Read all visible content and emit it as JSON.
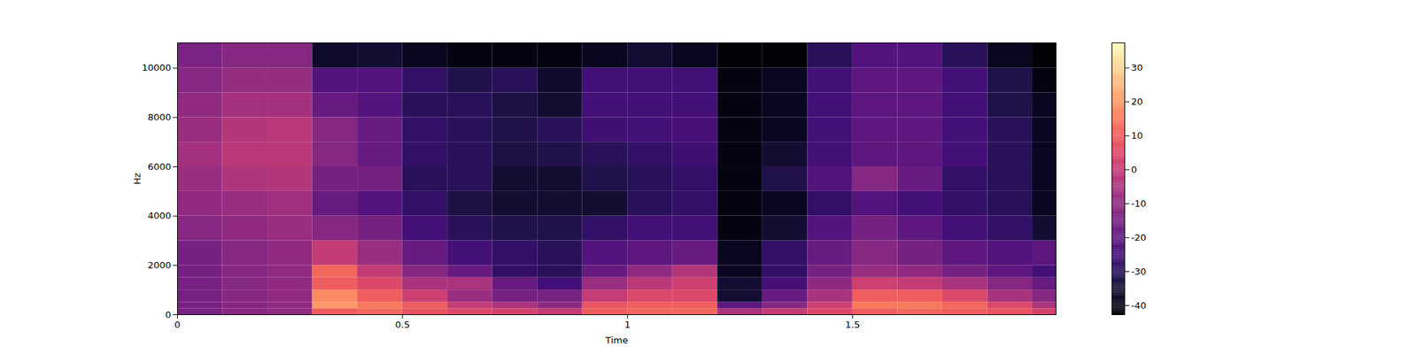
{
  "chart_data": {
    "type": "heatmap",
    "x_label": "Time",
    "y_label": "Hz",
    "xlim": [
      0,
      1.952
    ],
    "xticks": [
      0,
      0.5,
      1,
      1.5
    ],
    "ylim": [
      0,
      11025
    ],
    "yticks": [
      0,
      2000,
      4000,
      6000,
      8000,
      10000
    ],
    "time_edges": [
      0,
      0.1,
      0.2,
      0.3,
      0.4,
      0.5,
      0.6,
      0.7,
      0.8,
      0.9,
      1.0,
      1.1,
      1.2,
      1.3,
      1.4,
      1.5,
      1.6,
      1.7,
      1.8,
      1.9,
      1.952
    ],
    "freq_edges": [
      0,
      250,
      500,
      1000,
      1500,
      2000,
      3000,
      4000,
      5000,
      6000,
      7000,
      8000,
      9000,
      10000,
      11025
    ],
    "cells": [
      [
        -15,
        -12,
        -10,
        10,
        12,
        8,
        5,
        3,
        0,
        10,
        12,
        12,
        -5,
        0,
        5,
        10,
        12,
        10,
        8,
        3
      ],
      [
        -15,
        -12,
        -10,
        20,
        15,
        10,
        0,
        -5,
        -10,
        8,
        10,
        10,
        -20,
        -12,
        2,
        15,
        15,
        12,
        5,
        -5
      ],
      [
        -15,
        -12,
        -10,
        18,
        10,
        2,
        -8,
        -15,
        -15,
        0,
        5,
        5,
        -35,
        -18,
        -5,
        10,
        10,
        5,
        -5,
        -12
      ],
      [
        -15,
        -12,
        -10,
        10,
        5,
        -5,
        -5,
        -18,
        -25,
        -8,
        -2,
        2,
        -35,
        -25,
        -10,
        2,
        0,
        -5,
        -12,
        -18
      ],
      [
        -15,
        -12,
        -10,
        12,
        0,
        -12,
        -18,
        -28,
        -30,
        -18,
        -10,
        -3,
        -38,
        -28,
        -15,
        -8,
        -10,
        -15,
        -20,
        -25
      ],
      [
        -15,
        -12,
        -10,
        0,
        -8,
        -18,
        -25,
        -28,
        -30,
        -22,
        -20,
        -18,
        -38,
        -28,
        -18,
        -12,
        -15,
        -20,
        -22,
        -20
      ],
      [
        -12,
        -10,
        -8,
        -12,
        -15,
        -25,
        -30,
        -32,
        -32,
        -28,
        -25,
        -25,
        -40,
        -35,
        -22,
        -15,
        -20,
        -25,
        -28,
        -35
      ],
      [
        -10,
        -8,
        -7,
        -18,
        -22,
        -28,
        -33,
        -35,
        -35,
        -35,
        -30,
        -28,
        -40,
        -38,
        -28,
        -22,
        -25,
        -28,
        -30,
        -38
      ],
      [
        -8,
        -4,
        -3,
        -15,
        -15,
        -30,
        -30,
        -35,
        -35,
        -32,
        -30,
        -28,
        -40,
        -32,
        -22,
        -12,
        -18,
        -28,
        -30,
        -38
      ],
      [
        -6,
        -2,
        -2,
        -12,
        -18,
        -28,
        -30,
        -33,
        -32,
        -30,
        -28,
        -26,
        -40,
        -35,
        -25,
        -20,
        -20,
        -25,
        -30,
        -38
      ],
      [
        -8,
        -3,
        -2,
        -12,
        -18,
        -28,
        -30,
        -32,
        -30,
        -26,
        -25,
        -24,
        -40,
        -38,
        -25,
        -20,
        -20,
        -25,
        -30,
        -38
      ],
      [
        -10,
        -6,
        -6,
        -18,
        -22,
        -30,
        -30,
        -33,
        -35,
        -25,
        -25,
        -25,
        -40,
        -38,
        -25,
        -20,
        -20,
        -25,
        -32,
        -38
      ],
      [
        -12,
        -9,
        -9,
        -22,
        -22,
        -28,
        -32,
        -30,
        -36,
        -25,
        -25,
        -25,
        -40,
        -38,
        -25,
        -20,
        -20,
        -25,
        -32,
        -40
      ],
      [
        -14,
        -12,
        -12,
        -36,
        -35,
        -38,
        -40,
        -40,
        -40,
        -38,
        -35,
        -38,
        -42,
        -42,
        -30,
        -22,
        -22,
        -30,
        -38,
        -42
      ]
    ],
    "colorbar_range": [
      -42.7,
      37.4
    ],
    "colorbar_ticks": [
      -40,
      -30,
      -20,
      -10,
      0,
      10,
      20,
      30
    ]
  }
}
